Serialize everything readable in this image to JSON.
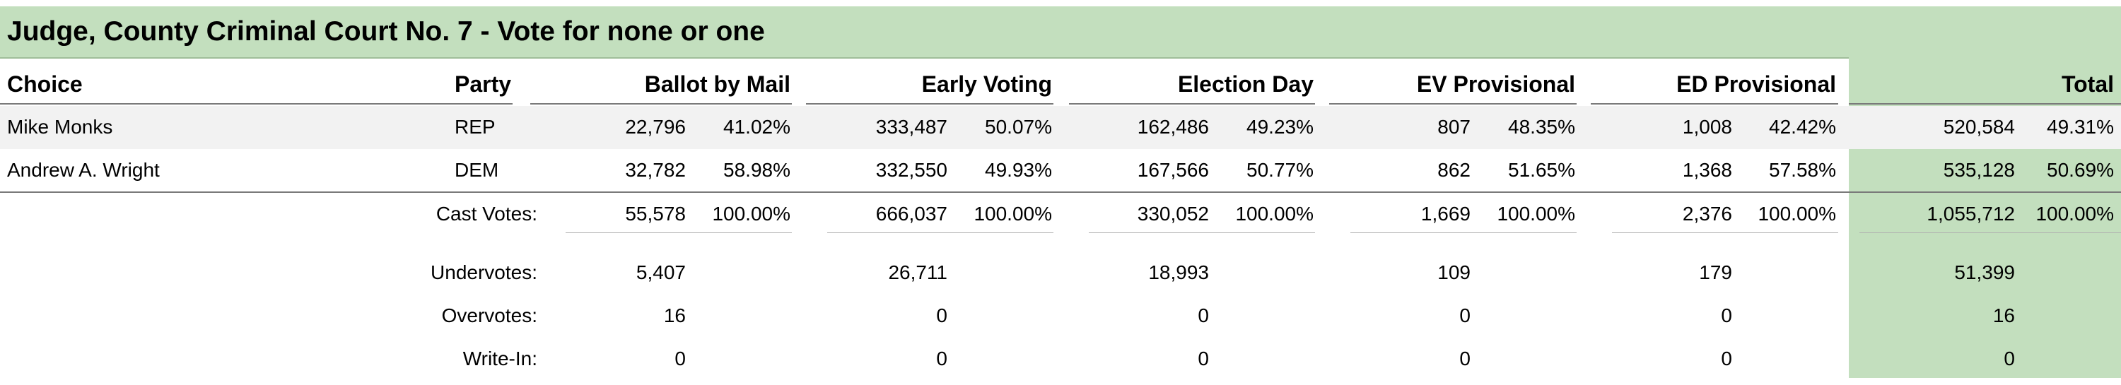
{
  "title": "Judge, County Criminal Court No. 7 - Vote for none or one",
  "headers": {
    "choice": "Choice",
    "party": "Party",
    "ballot_by_mail": "Ballot by Mail",
    "early_voting": "Early Voting",
    "election_day": "Election Day",
    "ev_provisional": "EV Provisional",
    "ed_provisional": "ED Provisional",
    "total": "Total"
  },
  "candidates": [
    {
      "choice": "Mike Monks",
      "party": "REP",
      "bbm_votes": "22,796",
      "bbm_pct": "41.02%",
      "ev_votes": "333,487",
      "ev_pct": "50.07%",
      "ed_votes": "162,486",
      "ed_pct": "49.23%",
      "evp_votes": "807",
      "evp_pct": "48.35%",
      "edp_votes": "1,008",
      "edp_pct": "42.42%",
      "total_votes": "520,584",
      "total_pct": "49.31%"
    },
    {
      "choice": "Andrew A. Wright",
      "party": "DEM",
      "bbm_votes": "32,782",
      "bbm_pct": "58.98%",
      "ev_votes": "332,550",
      "ev_pct": "49.93%",
      "ed_votes": "167,566",
      "ed_pct": "50.77%",
      "evp_votes": "862",
      "evp_pct": "51.65%",
      "edp_votes": "1,368",
      "edp_pct": "57.58%",
      "total_votes": "535,128",
      "total_pct": "50.69%"
    }
  ],
  "cast_votes": {
    "label": "Cast Votes:",
    "bbm_votes": "55,578",
    "bbm_pct": "100.00%",
    "ev_votes": "666,037",
    "ev_pct": "100.00%",
    "ed_votes": "330,052",
    "ed_pct": "100.00%",
    "evp_votes": "1,669",
    "evp_pct": "100.00%",
    "edp_votes": "2,376",
    "edp_pct": "100.00%",
    "total_votes": "1,055,712",
    "total_pct": "100.00%"
  },
  "undervotes": {
    "label": "Undervotes:",
    "bbm": "5,407",
    "ev": "26,711",
    "ed": "18,993",
    "evp": "109",
    "edp": "179",
    "total": "51,399"
  },
  "overvotes": {
    "label": "Overvotes:",
    "bbm": "16",
    "ev": "0",
    "ed": "0",
    "evp": "0",
    "edp": "0",
    "total": "16"
  },
  "write_in": {
    "label": "Write-In:",
    "bbm": "0",
    "ev": "0",
    "ed": "0",
    "evp": "0",
    "edp": "0",
    "total": "0"
  },
  "colors": {
    "title_bg": "#c3dfbe",
    "total_column_bg": "#c3dfbe",
    "alt_row_bg": "#f2f2f2"
  }
}
